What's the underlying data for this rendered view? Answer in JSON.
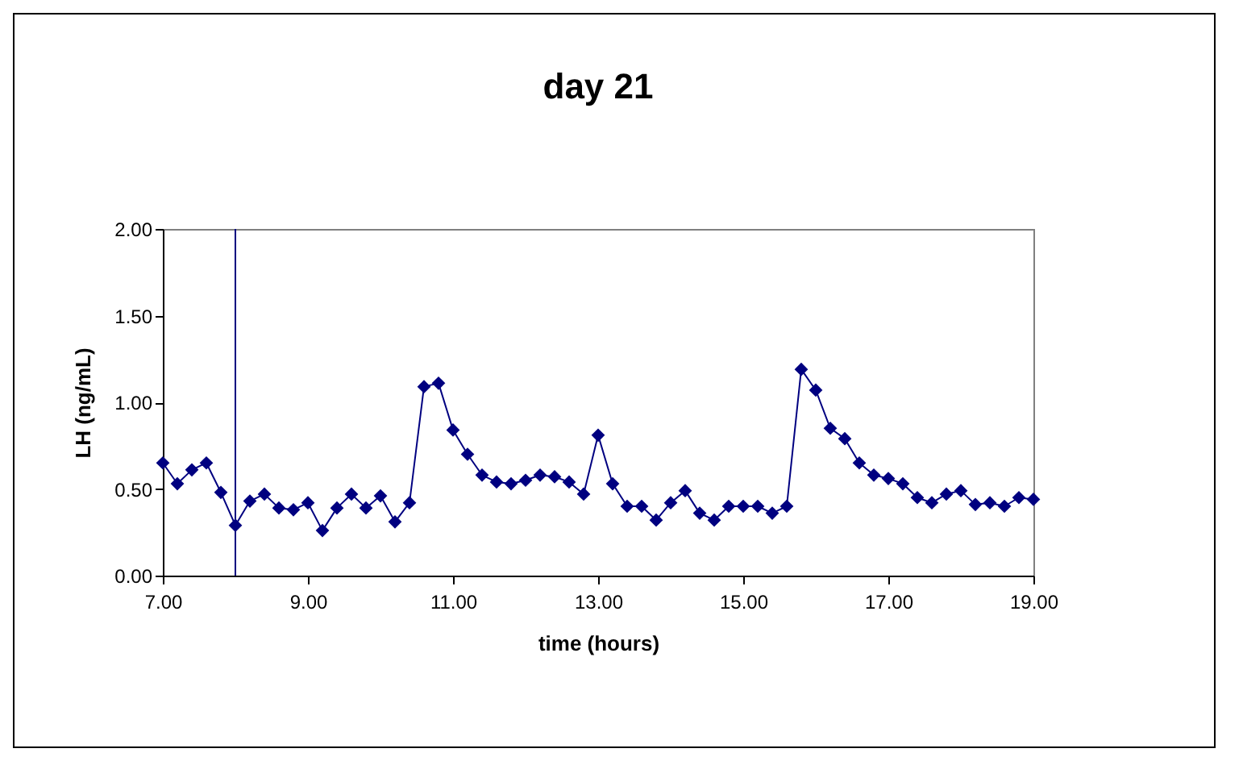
{
  "chart_data": {
    "type": "line",
    "title": "day 21",
    "xlabel": "time (hours)",
    "ylabel": "LH  (ng/mL)",
    "x": [
      7.0,
      7.2,
      7.4,
      7.6,
      7.8,
      8.0,
      8.2,
      8.4,
      8.6,
      8.8,
      9.0,
      9.2,
      9.4,
      9.6,
      9.8,
      10.0,
      10.2,
      10.4,
      10.6,
      10.8,
      11.0,
      11.2,
      11.4,
      11.6,
      11.8,
      12.0,
      12.2,
      12.4,
      12.6,
      12.8,
      13.0,
      13.2,
      13.4,
      13.6,
      13.8,
      14.0,
      14.2,
      14.4,
      14.6,
      14.8,
      15.0,
      15.2,
      15.4,
      15.6,
      15.8,
      16.0,
      16.2,
      16.4,
      16.6,
      16.8,
      17.0,
      17.2,
      17.4,
      17.6,
      17.8,
      18.0,
      18.2,
      18.4,
      18.6,
      18.8,
      19.0
    ],
    "series": [
      {
        "color": "#000080",
        "values": [
          0.65,
          0.53,
          0.61,
          0.65,
          0.48,
          0.29,
          0.43,
          0.47,
          0.39,
          0.38,
          0.42,
          0.26,
          0.39,
          0.47,
          0.39,
          0.46,
          0.31,
          0.42,
          1.09,
          1.11,
          0.84,
          0.7,
          0.58,
          0.54,
          0.53,
          0.55,
          0.58,
          0.57,
          0.54,
          0.47,
          0.81,
          0.53,
          0.4,
          0.4,
          0.32,
          0.42,
          0.49,
          0.36,
          0.32,
          0.4,
          0.4,
          0.4,
          0.36,
          0.4,
          1.19,
          1.07,
          0.85,
          0.79,
          0.65,
          0.58,
          0.56,
          0.53,
          0.45,
          0.42,
          0.47,
          0.49,
          0.41,
          0.42,
          0.4,
          0.45,
          0.44
        ]
      }
    ],
    "xlim": [
      7,
      19
    ],
    "xticks": [
      {
        "value": 7,
        "label": "7.00"
      },
      {
        "value": 9,
        "label": "9.00"
      },
      {
        "value": 11,
        "label": "11.00"
      },
      {
        "value": 13,
        "label": "13.00"
      },
      {
        "value": 15,
        "label": "15.00"
      },
      {
        "value": 17,
        "label": "17.00"
      },
      {
        "value": 19,
        "label": "19.00"
      }
    ],
    "ylim": [
      0,
      2
    ],
    "yticks": [
      {
        "value": 0,
        "label": "0.00"
      },
      {
        "value": 0.5,
        "label": "0.50"
      },
      {
        "value": 1,
        "label": "1.00"
      },
      {
        "value": 1.5,
        "label": "1.50"
      },
      {
        "value": 2,
        "label": "2.00"
      }
    ],
    "ref_lines": [
      {
        "axis": "x",
        "value": 8,
        "color": "#000080"
      }
    ],
    "grid": false,
    "marker": "diamond",
    "line_style": "solid"
  }
}
